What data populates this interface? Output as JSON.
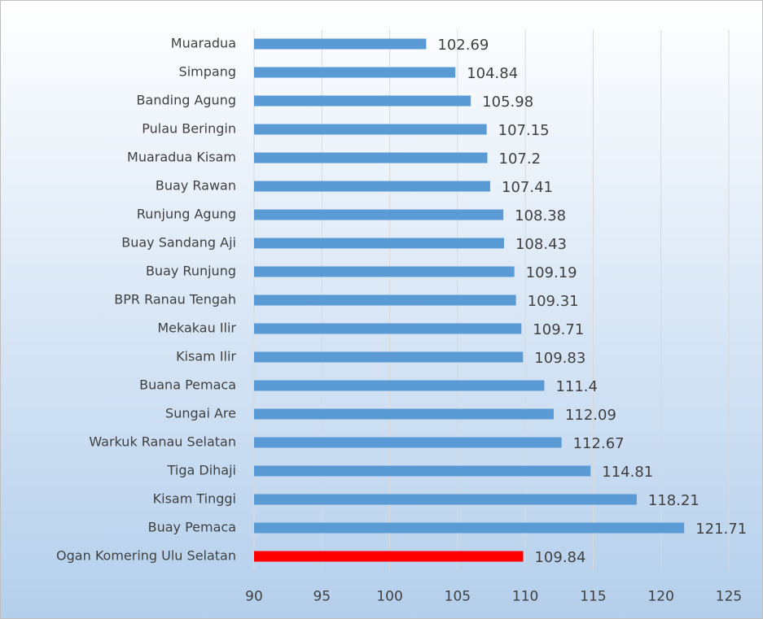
{
  "chart_data": {
    "type": "bar",
    "orientation": "horizontal",
    "categories": [
      "Muaradua",
      "Simpang",
      "Banding Agung",
      "Pulau Beringin",
      "Muaradua Kisam",
      "Buay Rawan",
      "Runjung Agung",
      "Buay Sandang Aji",
      "Buay Runjung",
      "BPR Ranau Tengah",
      "Mekakau Ilir",
      "Kisam Ilir",
      "Buana Pemaca",
      "Sungai Are",
      "Warkuk Ranau Selatan",
      "Tiga Dihaji",
      "Kisam Tinggi",
      "Buay Pemaca",
      "Ogan Komering Ulu Selatan"
    ],
    "values": [
      102.69,
      104.84,
      105.98,
      107.15,
      107.2,
      107.41,
      108.38,
      108.43,
      109.19,
      109.31,
      109.71,
      109.83,
      111.4,
      112.09,
      112.67,
      114.81,
      118.21,
      121.71,
      109.84
    ],
    "colors": [
      "#5b9bd5",
      "#5b9bd5",
      "#5b9bd5",
      "#5b9bd5",
      "#5b9bd5",
      "#5b9bd5",
      "#5b9bd5",
      "#5b9bd5",
      "#5b9bd5",
      "#5b9bd5",
      "#5b9bd5",
      "#5b9bd5",
      "#5b9bd5",
      "#5b9bd5",
      "#5b9bd5",
      "#5b9bd5",
      "#5b9bd5",
      "#5b9bd5",
      "#ff0000"
    ],
    "xlim": [
      90,
      125
    ],
    "xticks": [
      90,
      95,
      100,
      105,
      110,
      115,
      120,
      125
    ],
    "grid": true
  }
}
